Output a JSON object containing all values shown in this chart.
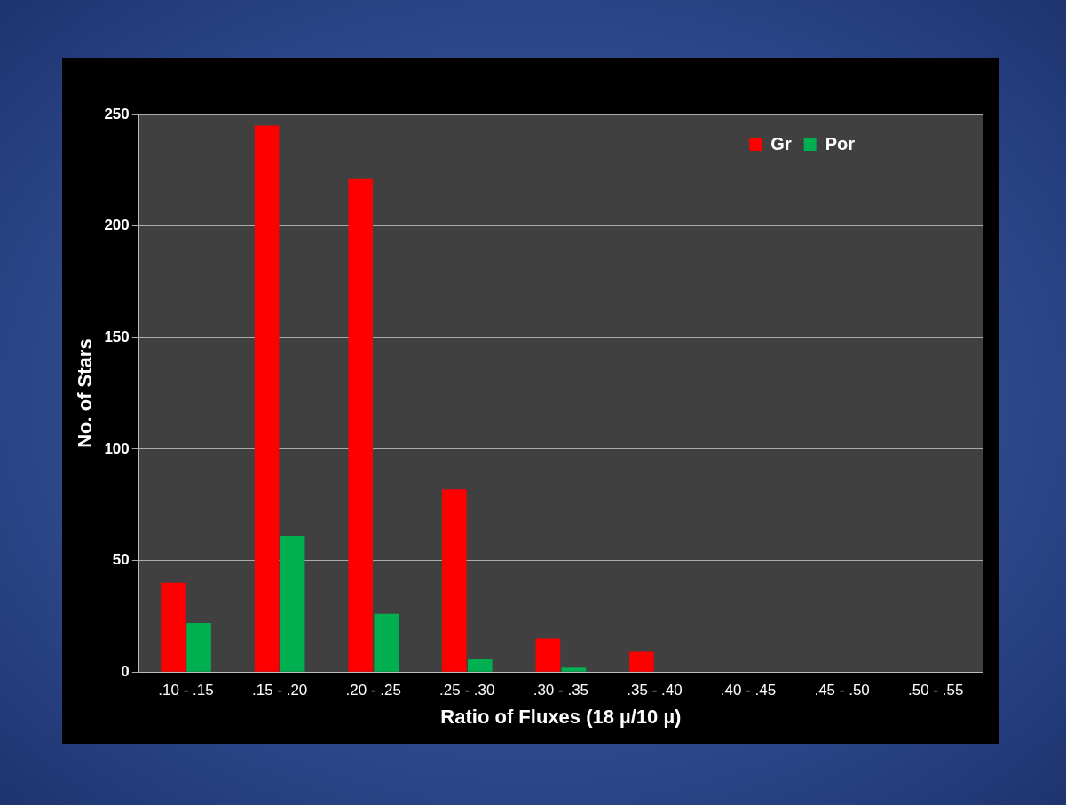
{
  "chart_data": {
    "type": "bar",
    "xlabel": "Ratio of Fluxes (18 µ/10 µ)",
    "ylabel": "No. of Stars",
    "categories": [
      ".10 - .15",
      ".15 - .20",
      ".20 - .25",
      ".25 - .30",
      ".30 - .35",
      ".35 - .40",
      ".40 - .45",
      ".45 - .50",
      ".50 - .55"
    ],
    "series": [
      {
        "name": "Gr",
        "color": "#ff0000",
        "values": [
          40,
          245,
          221,
          82,
          15,
          9,
          0,
          0,
          0
        ]
      },
      {
        "name": "Por",
        "color": "#00b050",
        "values": [
          22,
          61,
          26,
          6,
          2,
          0,
          0,
          0,
          0
        ]
      }
    ],
    "ylim": [
      0,
      250
    ],
    "yticks": [
      0,
      50,
      100,
      150,
      200,
      250
    ],
    "grid": "y",
    "legend": "top right"
  }
}
